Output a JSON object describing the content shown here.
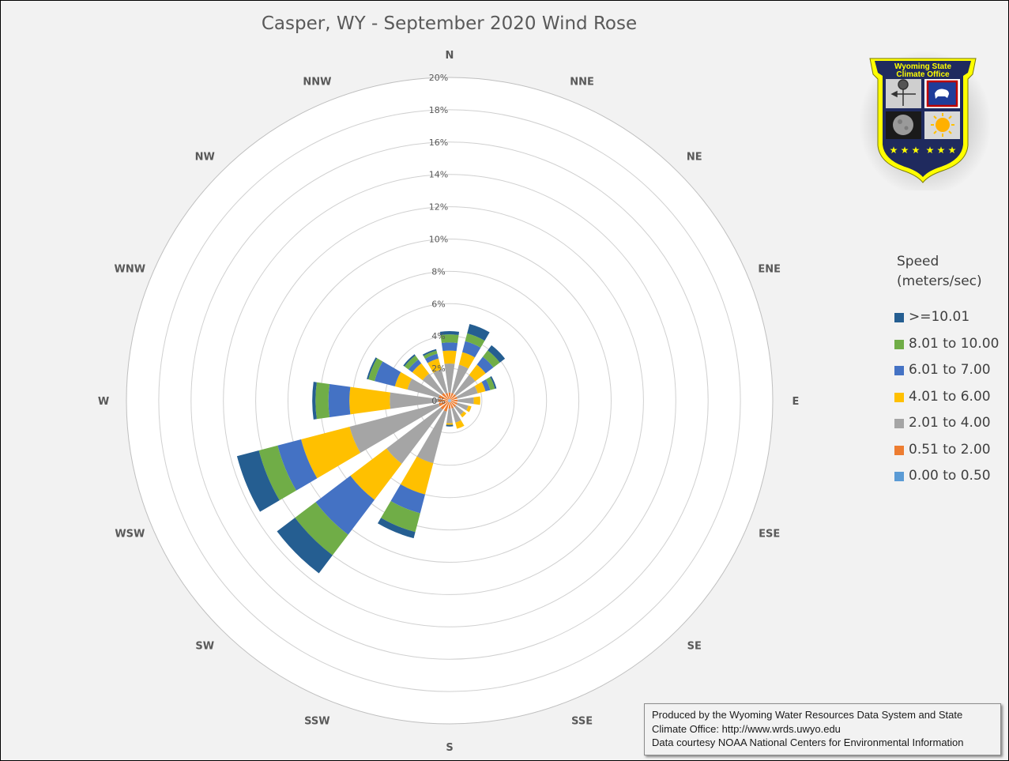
{
  "chart_data": {
    "type": "wind-rose",
    "title": "Casper, WY - September 2020 Wind Rose",
    "directions": [
      "N",
      "NNE",
      "NE",
      "ENE",
      "E",
      "ESE",
      "SE",
      "SSE",
      "S",
      "SSW",
      "SW",
      "WSW",
      "W",
      "WNW",
      "NW",
      "NNW"
    ],
    "radial_ticks": [
      "0%",
      "2%",
      "4%",
      "6%",
      "8%",
      "10%",
      "12%",
      "14%",
      "16%",
      "18%",
      "20%"
    ],
    "radial_range": [
      0,
      20
    ],
    "legend_title": [
      "Speed",
      "(meters/sec)"
    ],
    "series": [
      {
        "name": "0.00 to 0.50",
        "color": "#5b9bd5",
        "values": [
          0.1,
          0.1,
          0.1,
          0.1,
          0.1,
          0.1,
          0.1,
          0.1,
          0.1,
          0.1,
          0.1,
          0.1,
          0.1,
          0.1,
          0.1,
          0.1
        ]
      },
      {
        "name": "0.51 to 2.00",
        "color": "#ed7d31",
        "values": [
          0.4,
          0.4,
          0.4,
          0.4,
          0.4,
          0.4,
          0.4,
          0.4,
          0.4,
          0.6,
          0.6,
          0.6,
          0.6,
          0.6,
          0.5,
          0.4
        ]
      },
      {
        "name": "2.01 to 4.00",
        "color": "#a5a5a5",
        "values": [
          1.8,
          1.8,
          1.5,
          1.3,
          1.0,
          0.7,
          0.6,
          0.9,
          0.9,
          3.3,
          4.2,
          5.7,
          3.0,
          2.0,
          1.5,
          1.5
        ]
      },
      {
        "name": "4.01 to 6.00",
        "color": "#ffc000",
        "values": [
          0.8,
          0.8,
          0.8,
          0.5,
          0.4,
          0.2,
          0.2,
          0.4,
          0.1,
          2.0,
          2.8,
          3.1,
          2.5,
          0.8,
          0.8,
          0.7
        ]
      },
      {
        "name": "6.01 to 7.00",
        "color": "#4472c4",
        "values": [
          0.5,
          0.7,
          0.6,
          0.3,
          0.0,
          0.0,
          0.0,
          0.0,
          0.0,
          1.2,
          2.7,
          1.5,
          1.3,
          1.3,
          0.3,
          0.3
        ]
      },
      {
        "name": "8.01 to 10.00",
        "color": "#70ad47",
        "values": [
          0.5,
          0.5,
          0.5,
          0.3,
          0.0,
          0.0,
          0.0,
          0.0,
          0.0,
          1.2,
          1.6,
          1.2,
          0.8,
          0.4,
          0.3,
          0.2
        ]
      },
      {
        "name": ">=10.01",
        "color": "#255e91",
        "values": [
          0.2,
          0.6,
          0.4,
          0.1,
          0.0,
          0.0,
          0.0,
          0.0,
          0.1,
          0.4,
          1.4,
          1.4,
          0.2,
          0.1,
          0.1,
          0.1
        ]
      }
    ],
    "legend_order": [
      ">=10.01",
      "8.01 to 10.00",
      "6.01 to 7.00",
      "4.01 to 6.00",
      "2.01 to 4.00",
      "0.51 to 2.00",
      "0.00 to 0.50"
    ],
    "legend_position": "right"
  },
  "logo": {
    "line1": "Wyoming State",
    "line2": "Climate Office",
    "colors": {
      "shield": "#ffff00",
      "field": "#1f2a5e"
    },
    "icons": [
      "weather-vane-icon",
      "wyoming-flag-icon",
      "moon-icon",
      "sun-icon",
      "stars-icon"
    ]
  },
  "credit": {
    "line1": "Produced by the Wyoming Water Resources Data System and State",
    "line2": "Climate Office: http://www.wrds.uwyo.edu",
    "line3": "Data courtesy NOAA National Centers for Environmental Information"
  }
}
